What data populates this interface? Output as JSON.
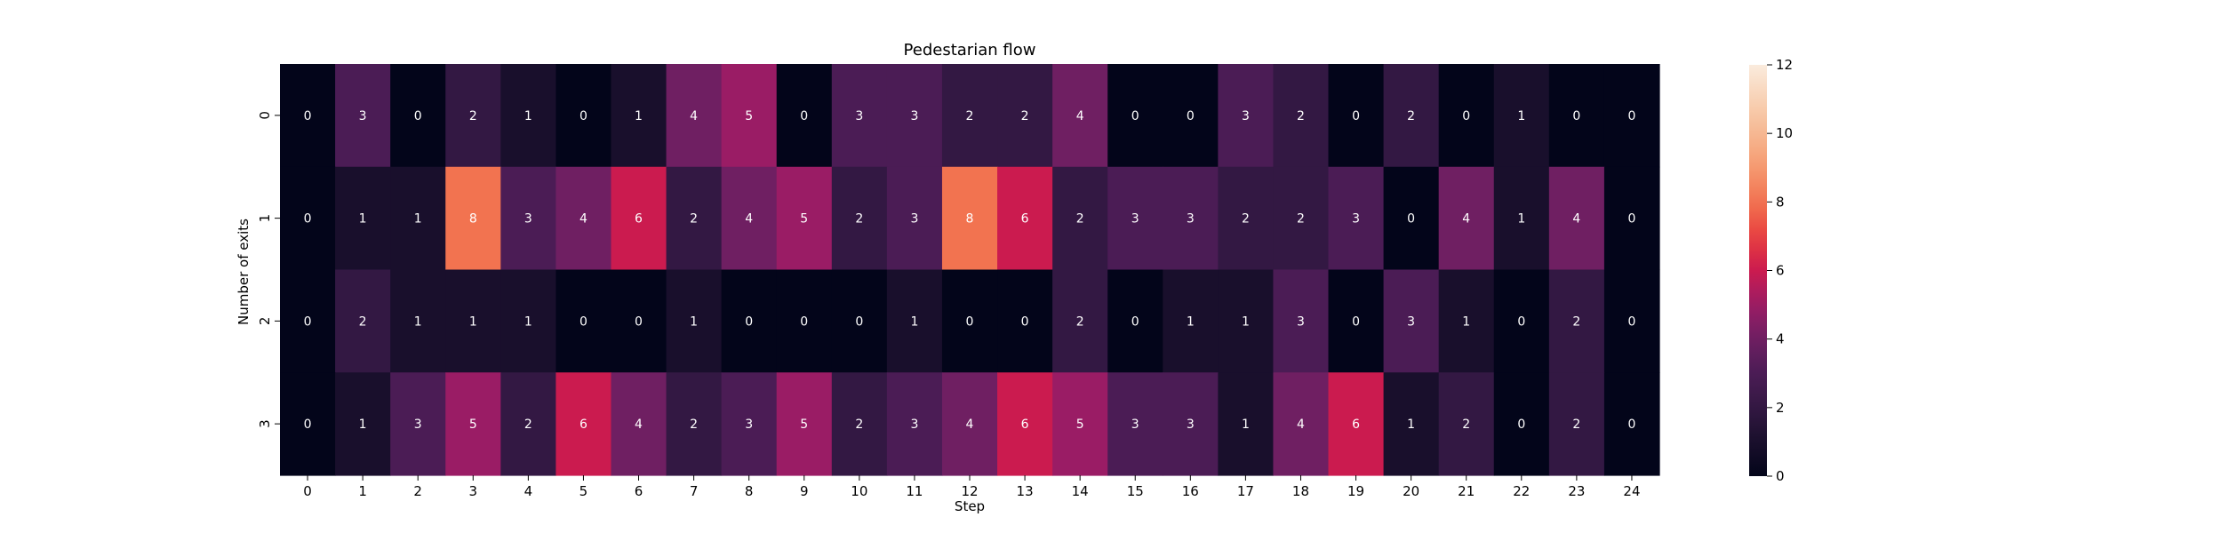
{
  "chart_data": {
    "type": "heatmap",
    "title": "Pedestarian flow",
    "xlabel": "Step",
    "ylabel": "Number of exits",
    "x": [
      "0",
      "1",
      "2",
      "3",
      "4",
      "5",
      "6",
      "7",
      "8",
      "9",
      "10",
      "11",
      "12",
      "13",
      "14",
      "15",
      "16",
      "17",
      "18",
      "19",
      "20",
      "21",
      "22",
      "23",
      "24"
    ],
    "y": [
      "0",
      "1",
      "2",
      "3"
    ],
    "values": [
      [
        0,
        3,
        0,
        2,
        1,
        0,
        1,
        4,
        5,
        0,
        3,
        3,
        2,
        2,
        4,
        0,
        0,
        3,
        2,
        0,
        2,
        0,
        1,
        0,
        0
      ],
      [
        0,
        1,
        1,
        8,
        3,
        4,
        6,
        2,
        4,
        5,
        2,
        3,
        8,
        6,
        2,
        3,
        3,
        2,
        2,
        3,
        0,
        4,
        1,
        4,
        0
      ],
      [
        0,
        2,
        1,
        1,
        1,
        0,
        0,
        1,
        0,
        0,
        0,
        1,
        0,
        0,
        2,
        0,
        1,
        1,
        3,
        0,
        3,
        1,
        0,
        2,
        0
      ],
      [
        0,
        1,
        3,
        5,
        2,
        6,
        4,
        2,
        3,
        5,
        2,
        3,
        4,
        6,
        5,
        3,
        3,
        1,
        4,
        6,
        1,
        2,
        0,
        2,
        0
      ]
    ],
    "colorbar": {
      "colormap": "rocket",
      "range": [
        0,
        12
      ],
      "ticks": [
        "0",
        "2",
        "4",
        "6",
        "8",
        "10",
        "12"
      ]
    },
    "grid": false,
    "legend": "colorbar-right"
  }
}
